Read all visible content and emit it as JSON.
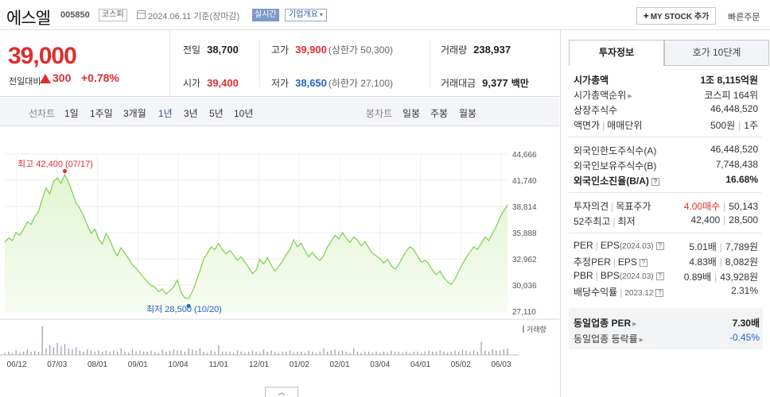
{
  "header": {
    "stock_name": "에스엘",
    "stock_code": "005850",
    "market": "코스피",
    "date_text": "2024.06.11  기준(장마감)",
    "realtime_label": "실시간",
    "company_overview_label": "기업개요",
    "mystock_label": "MY STOCK 추가",
    "quick_order_label": "빠른주문"
  },
  "summary": {
    "price": "39,000",
    "change_label": "전일대비",
    "change_amount": "300",
    "change_percent": "+0.78%",
    "prev_close": {
      "label": "전일",
      "value": "38,700"
    },
    "open": {
      "label": "시가",
      "value": "39,400"
    },
    "high": {
      "label": "고가",
      "value": "39,900",
      "sub": "(상한가 50,300)"
    },
    "low": {
      "label": "저가",
      "value": "38,650",
      "sub": "(하한가 27,100)"
    },
    "volume": {
      "label": "거래량",
      "value": "238,937"
    },
    "trade_value": {
      "label": "거래대금",
      "value": "9,377",
      "unit": "백만"
    }
  },
  "periods": {
    "line_title": "선차트",
    "line_items": [
      "1일",
      "1주일",
      "3개월",
      "1년",
      "3년",
      "5년",
      "10년"
    ],
    "active": "1년",
    "candle_title": "봉차트",
    "candle_items": [
      "일봉",
      "주봉",
      "월봉"
    ]
  },
  "chart_data": {
    "type": "area",
    "y_ticks": [
      "44,666",
      "41,740",
      "38,814",
      "35,888",
      "32,962",
      "30,036",
      "27,110"
    ],
    "ylim": [
      27110,
      44666
    ],
    "x_ticks": [
      "06/12",
      "07/03",
      "08/01",
      "09/01",
      "10/04",
      "11/01",
      "12/01",
      "01/02",
      "02/01",
      "03/04",
      "04/01",
      "05/02",
      "06/03"
    ],
    "high_label": "최고 42,400 (07/17)",
    "low_label": "최저 28,500 (10/20)",
    "volume_label": "거래량",
    "colors": {
      "line": "#7bd14a",
      "fill": "#e2f5d2",
      "high_marker": "#e12d2d",
      "low_marker": "#2364c6",
      "volume": "#9aa3b5"
    },
    "series": [
      {
        "values": [
          34800,
          35300,
          35000,
          35900,
          35600,
          36300,
          37100,
          36800,
          37700,
          38200,
          39700,
          40900,
          40200,
          41600,
          42000,
          41400,
          42400,
          41500,
          40400,
          39200,
          38600,
          37800,
          36700,
          35800,
          36300,
          35200,
          34600,
          35800,
          35100,
          34000,
          33300,
          34200,
          33600,
          33000,
          32300,
          31900,
          31400,
          30900,
          30400,
          30000,
          29800,
          29300,
          29600,
          29000,
          29400,
          29800,
          30600,
          29200,
          28600,
          28500,
          29300,
          30400,
          31600,
          32900,
          33600,
          34300,
          34000,
          34700,
          34000,
          33500,
          33900,
          33400,
          32800,
          33200,
          32600,
          32000,
          31300,
          31700,
          32900,
          32400,
          33100,
          32300,
          31600,
          32100,
          32700,
          33400,
          34000,
          35100,
          34300,
          34700,
          33900,
          33200,
          33700,
          33100,
          32800,
          33300,
          34300,
          34900,
          35600,
          35200,
          35900,
          35300,
          34800,
          35400,
          35100,
          34400,
          34900,
          34200,
          33600,
          33300,
          33000,
          32500,
          32900,
          32200,
          31800,
          32300,
          33100,
          33800,
          34300,
          34000,
          33300,
          32600,
          32800,
          32400,
          31700,
          31200,
          31600,
          30900,
          30400,
          30100,
          30700,
          31600,
          32400,
          33100,
          33700,
          34300,
          34000,
          34700,
          35400,
          35000,
          35800,
          36600,
          37600,
          38300,
          39000
        ]
      }
    ],
    "volumes": [
      2,
      3,
      2,
      4,
      2,
      3,
      5,
      3,
      4,
      3,
      26,
      6,
      9,
      7,
      11,
      8,
      10,
      6,
      5,
      7,
      4,
      3,
      5,
      4,
      3,
      4,
      3,
      4,
      3,
      4,
      3,
      6,
      3,
      2,
      5,
      3,
      4,
      3,
      3,
      4,
      3,
      2,
      5,
      3,
      4,
      5,
      4,
      4,
      3,
      6,
      5,
      4,
      6,
      3,
      2,
      4,
      3,
      9,
      3,
      3,
      3,
      2,
      4,
      3,
      2,
      3,
      4,
      3,
      2,
      5,
      3,
      4,
      3,
      2,
      3,
      3,
      4,
      2,
      3,
      3,
      2,
      4,
      3,
      2,
      3,
      6,
      3,
      4,
      5,
      3,
      4,
      3,
      2,
      6,
      3,
      2,
      3,
      3,
      2,
      3,
      2,
      3,
      2,
      4,
      3,
      3,
      2,
      3,
      2,
      3,
      3,
      2,
      3,
      4,
      3,
      3,
      4,
      3,
      2,
      3,
      4,
      3,
      5,
      4,
      3,
      4,
      3,
      12,
      4,
      3,
      5,
      4,
      4,
      5,
      6
    ]
  },
  "right_panel": {
    "tab_active": "투자정보",
    "tab_inactive": "호가 10단계",
    "market_cap": {
      "label": "시가총액",
      "value": "1조 8,115억원"
    },
    "market_cap_rank": {
      "label": "시가총액순위",
      "value": "코스피 164위"
    },
    "shares": {
      "label": "상장주식수",
      "value": "46,448,520"
    },
    "face_value": {
      "label1": "액면가",
      "label2": "매매단위",
      "value1": "500원",
      "value2": "1주"
    },
    "foreign_limit": {
      "label": "외국인한도주식수(A)",
      "value": "46,448,520"
    },
    "foreign_owned": {
      "label": "외국인보유주식수(B)",
      "value": "7,748,438"
    },
    "foreign_ratio": {
      "label": "외국인소진율(B/A)",
      "value": "16.68%"
    },
    "opinion": {
      "label1": "투자의견",
      "label2": "목표주가",
      "value1": "4.00매수",
      "value2": "50,143"
    },
    "week52": {
      "label1": "52주최고",
      "label2": "최저",
      "value1": "42,400",
      "value2": "28,500"
    },
    "per_eps": {
      "label1": "PER",
      "label2": "EPS",
      "period": "(2024.03)",
      "value1": "5.01배",
      "value2": "7,789원"
    },
    "est_per_eps": {
      "label1": "추정PER",
      "label2": "EPS",
      "value1": "4.83배",
      "value2": "8,082원"
    },
    "pbr_bps": {
      "label1": "PBR",
      "label2": "BPS",
      "period": "(2024.03)",
      "value1": "0.89배",
      "value2": "43,928원"
    },
    "dividend": {
      "label": "배당수익률",
      "period": "2023.12",
      "value": "2.31%"
    },
    "sector_per": {
      "label": "동일업종 PER",
      "value": "7.30배"
    },
    "sector_change": {
      "label": "동일업종 등락률",
      "value": "-0.45%"
    }
  }
}
